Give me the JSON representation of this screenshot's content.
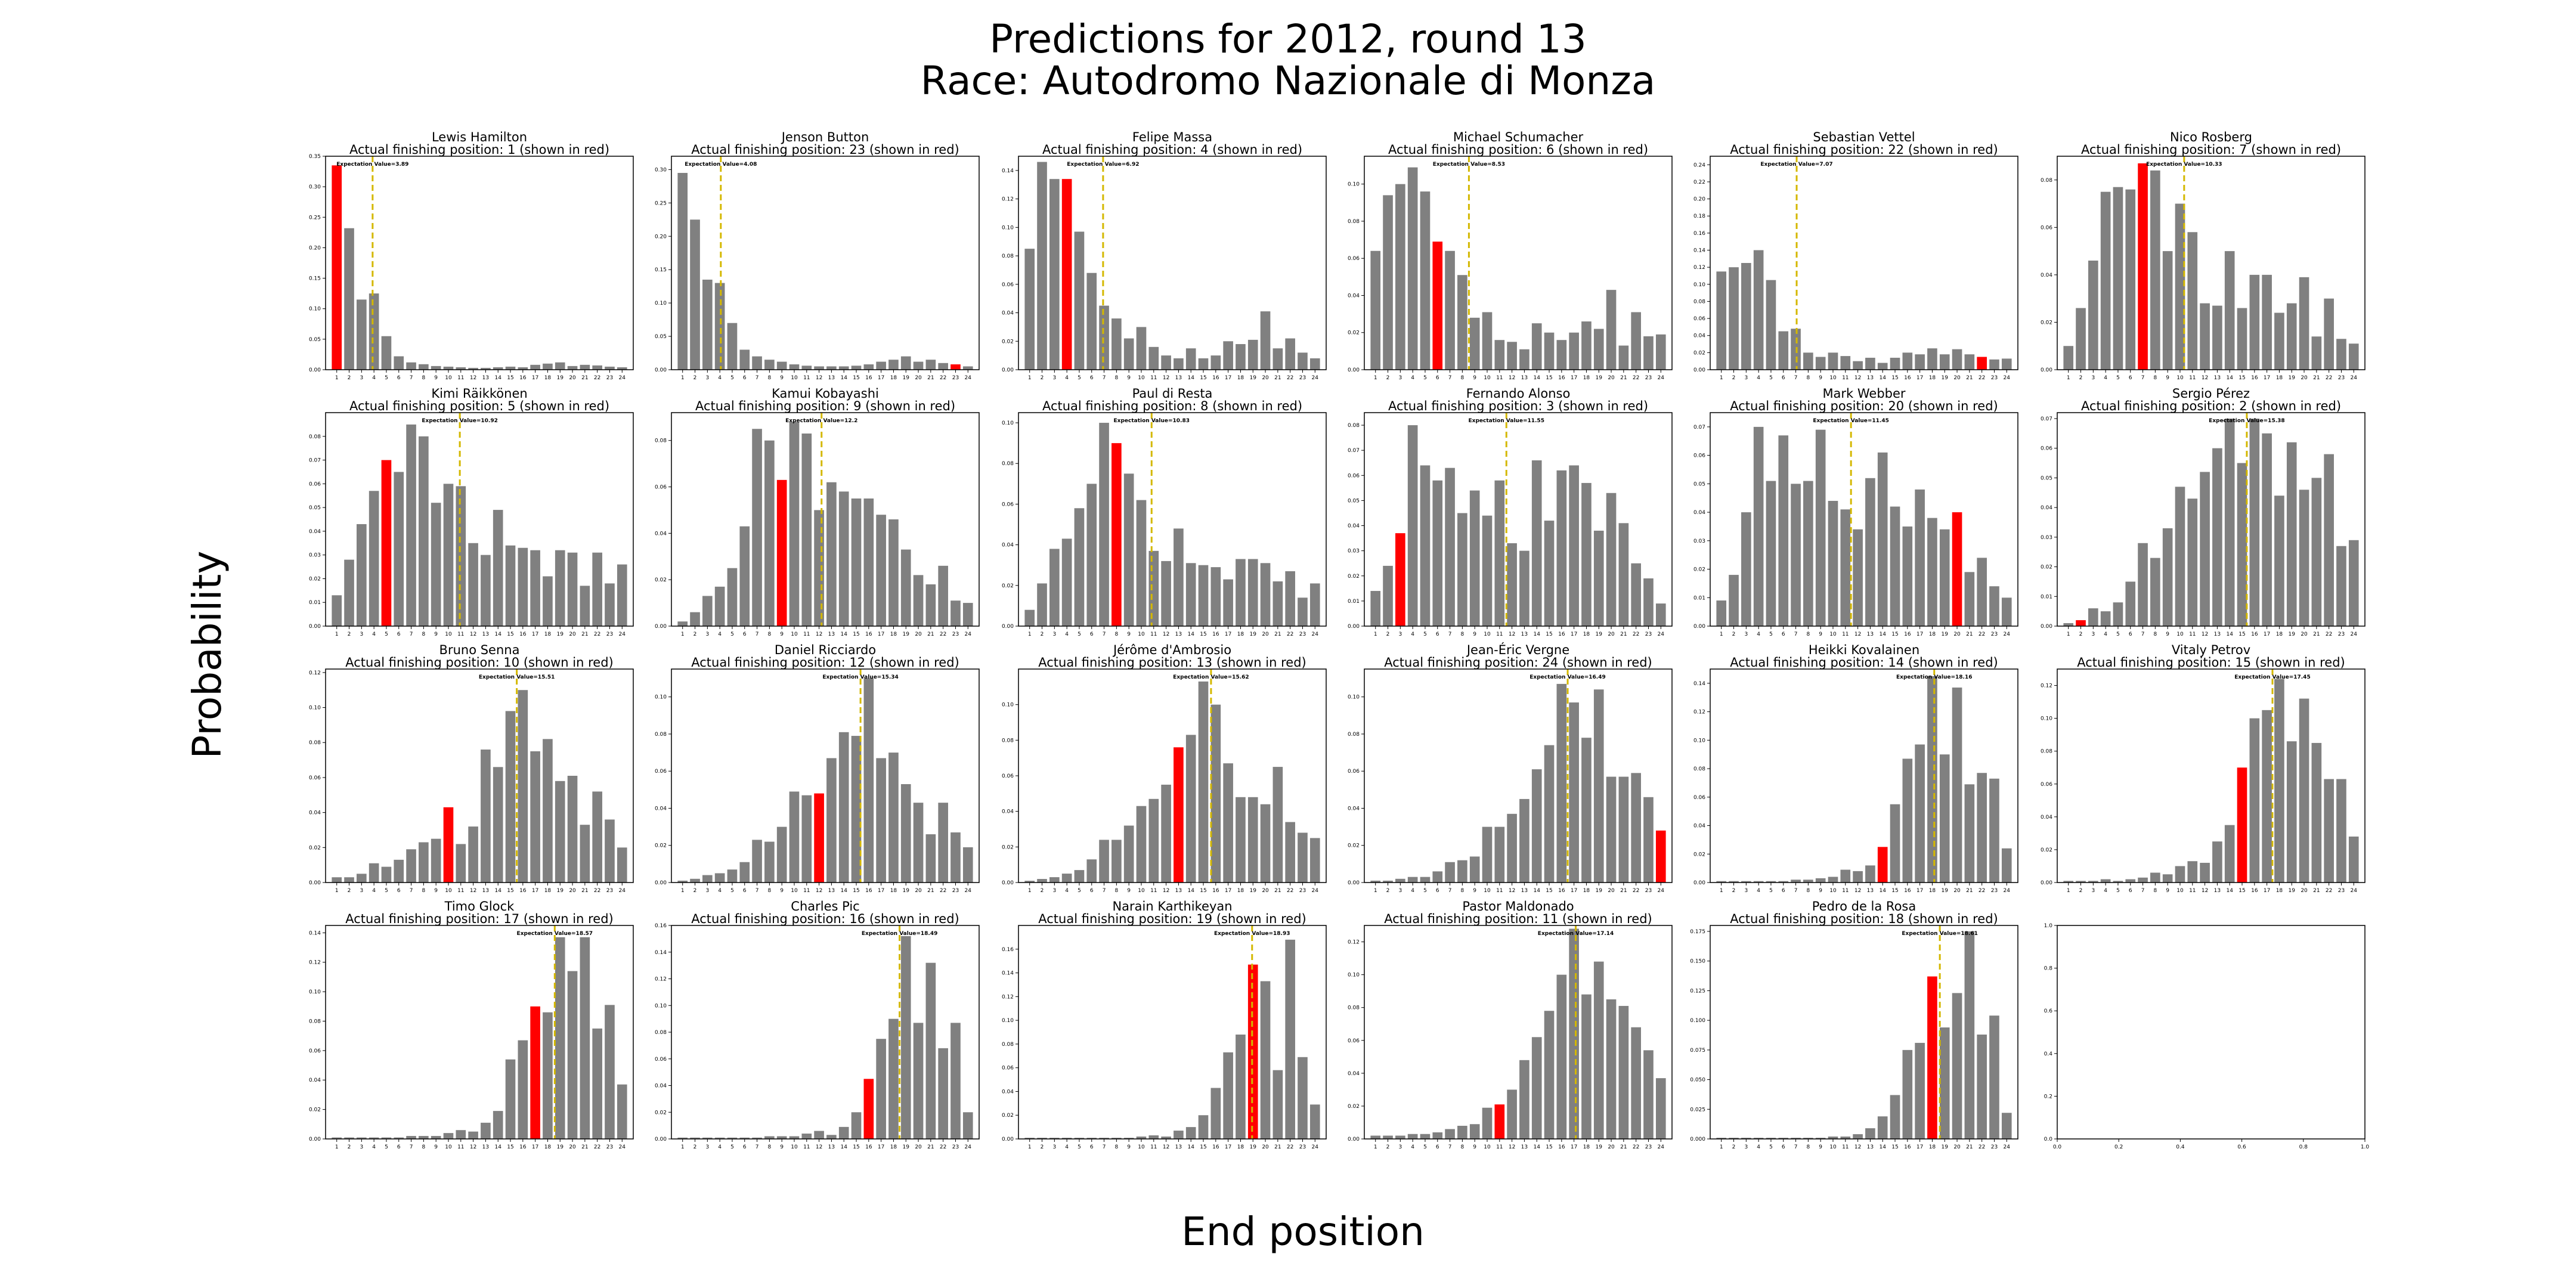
{
  "figure": {
    "title_line1": "Predictions for 2012, round 13",
    "title_line2": "Race: Autodromo Nazionale di Monza",
    "ylabel": "Probability",
    "xlabel": "End position",
    "colors": {
      "bar": "#808080",
      "actual": "#ff0000",
      "expectation_line": "#d4b800",
      "axes": "#000000"
    }
  },
  "chart_data": [
    {
      "type": "bar",
      "title": "Lewis Hamilton",
      "subtitle": "Actual finishing position: 1 (shown in red)",
      "actual": 1,
      "expectation": 3.89,
      "expectation_label": "Expectation Value=3.89",
      "ylim": [
        0,
        0.35
      ],
      "yticks": [
        0.0,
        0.05,
        0.1,
        0.15,
        0.2,
        0.25,
        0.3,
        0.35
      ],
      "values": [
        0.335,
        0.232,
        0.115,
        0.125,
        0.055,
        0.022,
        0.012,
        0.009,
        0.006,
        0.005,
        0.004,
        0.003,
        0.003,
        0.004,
        0.005,
        0.004,
        0.008,
        0.01,
        0.012,
        0.006,
        0.008,
        0.007,
        0.005,
        0.004
      ]
    },
    {
      "type": "bar",
      "title": "Jenson Button",
      "subtitle": "Actual finishing position: 23 (shown in red)",
      "actual": 23,
      "expectation": 4.08,
      "expectation_label": "Expectation Value=4.08",
      "ylim": [
        0,
        0.32
      ],
      "yticks": [
        0.0,
        0.05,
        0.1,
        0.15,
        0.2,
        0.25,
        0.3
      ],
      "values": [
        0.295,
        0.225,
        0.135,
        0.13,
        0.07,
        0.03,
        0.02,
        0.015,
        0.012,
        0.008,
        0.006,
        0.005,
        0.005,
        0.005,
        0.006,
        0.008,
        0.012,
        0.015,
        0.02,
        0.012,
        0.015,
        0.01,
        0.008,
        0.005
      ]
    },
    {
      "type": "bar",
      "title": "Felipe Massa",
      "subtitle": "Actual finishing position: 4 (shown in red)",
      "actual": 4,
      "expectation": 6.92,
      "expectation_label": "Expectation Value=6.92",
      "ylim": [
        0,
        0.15
      ],
      "yticks": [
        0.0,
        0.02,
        0.04,
        0.06,
        0.08,
        0.1,
        0.12,
        0.14
      ],
      "values": [
        0.085,
        0.146,
        0.134,
        0.134,
        0.097,
        0.068,
        0.045,
        0.036,
        0.022,
        0.03,
        0.016,
        0.01,
        0.008,
        0.015,
        0.008,
        0.01,
        0.02,
        0.018,
        0.021,
        0.041,
        0.015,
        0.022,
        0.012,
        0.008
      ]
    },
    {
      "type": "bar",
      "title": "Michael Schumacher",
      "subtitle": "Actual finishing position: 6 (shown in red)",
      "actual": 6,
      "expectation": 8.53,
      "expectation_label": "Expectation Value=8.53",
      "ylim": [
        0,
        0.115
      ],
      "yticks": [
        0.0,
        0.02,
        0.04,
        0.06,
        0.08,
        0.1
      ],
      "values": [
        0.064,
        0.094,
        0.1,
        0.109,
        0.096,
        0.069,
        0.064,
        0.051,
        0.028,
        0.031,
        0.016,
        0.015,
        0.011,
        0.025,
        0.02,
        0.016,
        0.02,
        0.026,
        0.022,
        0.043,
        0.013,
        0.031,
        0.018,
        0.019
      ]
    },
    {
      "type": "bar",
      "title": "Sebastian Vettel",
      "subtitle": "Actual finishing position: 22 (shown in red)",
      "actual": 22,
      "expectation": 7.07,
      "expectation_label": "Expectation Value=7.07",
      "ylim": [
        0,
        0.25
      ],
      "yticks": [
        0.0,
        0.02,
        0.04,
        0.06,
        0.08,
        0.1,
        0.12,
        0.14,
        0.16,
        0.18,
        0.2,
        0.22,
        0.24
      ],
      "values": [
        0.115,
        0.12,
        0.125,
        0.14,
        0.105,
        0.045,
        0.048,
        0.02,
        0.015,
        0.02,
        0.016,
        0.01,
        0.014,
        0.008,
        0.014,
        0.02,
        0.018,
        0.025,
        0.018,
        0.024,
        0.018,
        0.015,
        0.012,
        0.013
      ]
    },
    {
      "type": "bar",
      "title": "Nico Rosberg",
      "subtitle": "Actual finishing position: 7 (shown in red)",
      "actual": 7,
      "expectation": 10.33,
      "expectation_label": "Expectation Value=10.33",
      "ylim": [
        0,
        0.09
      ],
      "yticks": [
        0.0,
        0.02,
        0.04,
        0.06,
        0.08
      ],
      "values": [
        0.01,
        0.026,
        0.046,
        0.075,
        0.077,
        0.076,
        0.087,
        0.084,
        0.05,
        0.07,
        0.058,
        0.028,
        0.027,
        0.05,
        0.026,
        0.04,
        0.04,
        0.024,
        0.028,
        0.039,
        0.014,
        0.03,
        0.013,
        0.011
      ]
    },
    {
      "type": "bar",
      "title": "Kimi Räikkönen",
      "subtitle": "Actual finishing position: 5 (shown in red)",
      "actual": 5,
      "expectation": 10.92,
      "expectation_label": "Expectation Value=10.92",
      "ylim": [
        0,
        0.09
      ],
      "yticks": [
        0.0,
        0.01,
        0.02,
        0.03,
        0.04,
        0.05,
        0.06,
        0.07,
        0.08
      ],
      "values": [
        0.013,
        0.028,
        0.043,
        0.057,
        0.07,
        0.065,
        0.085,
        0.08,
        0.052,
        0.06,
        0.059,
        0.035,
        0.03,
        0.049,
        0.034,
        0.033,
        0.032,
        0.021,
        0.032,
        0.031,
        0.017,
        0.031,
        0.018,
        0.026
      ]
    },
    {
      "type": "bar",
      "title": "Kamui Kobayashi",
      "subtitle": "Actual finishing position: 9 (shown in red)",
      "actual": 9,
      "expectation": 12.2,
      "expectation_label": "Expectation Value=12.2",
      "ylim": [
        0,
        0.092
      ],
      "yticks": [
        0.0,
        0.02,
        0.04,
        0.06,
        0.08
      ],
      "values": [
        0.002,
        0.006,
        0.013,
        0.017,
        0.025,
        0.043,
        0.085,
        0.08,
        0.063,
        0.088,
        0.083,
        0.05,
        0.062,
        0.058,
        0.055,
        0.055,
        0.048,
        0.046,
        0.033,
        0.022,
        0.018,
        0.026,
        0.011,
        0.01
      ]
    },
    {
      "type": "bar",
      "title": "Paul di Resta",
      "subtitle": "Actual finishing position: 8 (shown in red)",
      "actual": 8,
      "expectation": 10.83,
      "expectation_label": "Expectation Value=10.83",
      "ylim": [
        0,
        0.105
      ],
      "yticks": [
        0.0,
        0.02,
        0.04,
        0.06,
        0.08,
        0.1
      ],
      "values": [
        0.008,
        0.021,
        0.038,
        0.043,
        0.058,
        0.07,
        0.1,
        0.09,
        0.075,
        0.062,
        0.037,
        0.032,
        0.048,
        0.031,
        0.03,
        0.029,
        0.023,
        0.033,
        0.033,
        0.031,
        0.022,
        0.027,
        0.014,
        0.021
      ]
    },
    {
      "type": "bar",
      "title": "Fernando Alonso",
      "subtitle": "Actual finishing position: 3 (shown in red)",
      "actual": 3,
      "expectation": 11.55,
      "expectation_label": "Expectation Value=11.55",
      "ylim": [
        0,
        0.085
      ],
      "yticks": [
        0.0,
        0.01,
        0.02,
        0.03,
        0.04,
        0.05,
        0.06,
        0.07,
        0.08
      ],
      "values": [
        0.014,
        0.024,
        0.037,
        0.08,
        0.064,
        0.058,
        0.063,
        0.045,
        0.054,
        0.044,
        0.058,
        0.033,
        0.03,
        0.066,
        0.042,
        0.062,
        0.064,
        0.057,
        0.038,
        0.053,
        0.041,
        0.025,
        0.019,
        0.009
      ]
    },
    {
      "type": "bar",
      "title": "Mark Webber",
      "subtitle": "Actual finishing position: 20 (shown in red)",
      "actual": 20,
      "expectation": 11.45,
      "expectation_label": "Expectation Value=11.45",
      "ylim": [
        0,
        0.075
      ],
      "yticks": [
        0.0,
        0.01,
        0.02,
        0.03,
        0.04,
        0.05,
        0.06,
        0.07
      ],
      "values": [
        0.009,
        0.018,
        0.04,
        0.07,
        0.051,
        0.067,
        0.05,
        0.051,
        0.069,
        0.044,
        0.041,
        0.034,
        0.052,
        0.061,
        0.042,
        0.035,
        0.048,
        0.038,
        0.034,
        0.04,
        0.019,
        0.024,
        0.014,
        0.01
      ]
    },
    {
      "type": "bar",
      "title": "Sergio Pérez",
      "subtitle": "Actual finishing position: 2 (shown in red)",
      "actual": 2,
      "expectation": 15.38,
      "expectation_label": "Expectation Value=15.38",
      "ylim": [
        0,
        0.072
      ],
      "yticks": [
        0.0,
        0.01,
        0.02,
        0.03,
        0.04,
        0.05,
        0.06,
        0.07
      ],
      "values": [
        0.001,
        0.002,
        0.006,
        0.005,
        0.008,
        0.015,
        0.028,
        0.023,
        0.033,
        0.047,
        0.043,
        0.052,
        0.06,
        0.07,
        0.055,
        0.07,
        0.065,
        0.044,
        0.062,
        0.046,
        0.05,
        0.058,
        0.027,
        0.029
      ]
    },
    {
      "type": "bar",
      "title": "Bruno Senna",
      "subtitle": "Actual finishing position: 10 (shown in red)",
      "actual": 10,
      "expectation": 15.51,
      "expectation_label": "Expectation Value=15.51",
      "ylim": [
        0,
        0.122
      ],
      "yticks": [
        0.0,
        0.02,
        0.04,
        0.06,
        0.08,
        0.1,
        0.12
      ],
      "values": [
        0.003,
        0.003,
        0.005,
        0.011,
        0.009,
        0.013,
        0.019,
        0.023,
        0.025,
        0.043,
        0.022,
        0.032,
        0.076,
        0.066,
        0.098,
        0.11,
        0.075,
        0.082,
        0.058,
        0.061,
        0.033,
        0.052,
        0.036,
        0.02
      ]
    },
    {
      "type": "bar",
      "title": "Daniel Ricciardo",
      "subtitle": "Actual finishing position: 12 (shown in red)",
      "actual": 12,
      "expectation": 15.34,
      "expectation_label": "Expectation Value=15.34",
      "ylim": [
        0,
        0.115
      ],
      "yticks": [
        0.0,
        0.02,
        0.04,
        0.06,
        0.08,
        0.1
      ],
      "values": [
        0.001,
        0.002,
        0.004,
        0.005,
        0.007,
        0.011,
        0.023,
        0.022,
        0.03,
        0.049,
        0.047,
        0.048,
        0.067,
        0.081,
        0.079,
        0.11,
        0.067,
        0.07,
        0.053,
        0.043,
        0.026,
        0.043,
        0.027,
        0.019
      ]
    },
    {
      "type": "bar",
      "title": "Jérôme d'Ambrosio",
      "subtitle": "Actual finishing position: 13 (shown in red)",
      "actual": 13,
      "expectation": 15.62,
      "expectation_label": "Expectation Value=15.62",
      "ylim": [
        0,
        0.12
      ],
      "yticks": [
        0.0,
        0.02,
        0.04,
        0.06,
        0.08,
        0.1
      ],
      "values": [
        0.001,
        0.002,
        0.003,
        0.005,
        0.007,
        0.013,
        0.024,
        0.024,
        0.032,
        0.043,
        0.047,
        0.055,
        0.076,
        0.083,
        0.113,
        0.1,
        0.067,
        0.048,
        0.048,
        0.044,
        0.065,
        0.034,
        0.028,
        0.025
      ]
    },
    {
      "type": "bar",
      "title": "Jean-Éric Vergne",
      "subtitle": "Actual finishing position: 24 (shown in red)",
      "actual": 24,
      "expectation": 16.49,
      "expectation_label": "Expectation Value=16.49",
      "ylim": [
        0,
        0.115
      ],
      "yticks": [
        0.0,
        0.02,
        0.04,
        0.06,
        0.08,
        0.1
      ],
      "values": [
        0.001,
        0.001,
        0.002,
        0.003,
        0.003,
        0.006,
        0.011,
        0.012,
        0.014,
        0.03,
        0.03,
        0.037,
        0.045,
        0.061,
        0.074,
        0.107,
        0.097,
        0.078,
        0.104,
        0.057,
        0.057,
        0.059,
        0.046,
        0.028
      ]
    },
    {
      "type": "bar",
      "title": "Heikki Kovalainen",
      "subtitle": "Actual finishing position: 14 (shown in red)",
      "actual": 14,
      "expectation": 18.16,
      "expectation_label": "Expectation Value=18.16",
      "ylim": [
        0,
        0.15
      ],
      "yticks": [
        0.0,
        0.02,
        0.04,
        0.06,
        0.08,
        0.1,
        0.12,
        0.14
      ],
      "values": [
        0.001,
        0.001,
        0.001,
        0.001,
        0.001,
        0.001,
        0.002,
        0.002,
        0.003,
        0.004,
        0.009,
        0.008,
        0.012,
        0.025,
        0.055,
        0.087,
        0.097,
        0.145,
        0.09,
        0.137,
        0.069,
        0.077,
        0.073,
        0.024
      ]
    },
    {
      "type": "bar",
      "title": "Vitaly Petrov",
      "subtitle": "Actual finishing position: 15 (shown in red)",
      "actual": 15,
      "expectation": 17.45,
      "expectation_label": "Expectation Value=17.45",
      "ylim": [
        0,
        0.13
      ],
      "yticks": [
        0.0,
        0.02,
        0.04,
        0.06,
        0.08,
        0.1,
        0.12
      ],
      "values": [
        0.001,
        0.001,
        0.001,
        0.002,
        0.001,
        0.002,
        0.003,
        0.006,
        0.005,
        0.01,
        0.013,
        0.012,
        0.025,
        0.035,
        0.07,
        0.1,
        0.105,
        0.124,
        0.086,
        0.112,
        0.085,
        0.063,
        0.063,
        0.028
      ]
    },
    {
      "type": "bar",
      "title": "Timo Glock",
      "subtitle": "Actual finishing position: 17 (shown in red)",
      "actual": 17,
      "expectation": 18.57,
      "expectation_label": "Expectation Value=18.57",
      "ylim": [
        0,
        0.145
      ],
      "yticks": [
        0.0,
        0.02,
        0.04,
        0.06,
        0.08,
        0.1,
        0.12,
        0.14
      ],
      "values": [
        0.001,
        0.001,
        0.001,
        0.001,
        0.001,
        0.001,
        0.002,
        0.002,
        0.002,
        0.004,
        0.006,
        0.005,
        0.011,
        0.019,
        0.054,
        0.067,
        0.09,
        0.086,
        0.137,
        0.114,
        0.137,
        0.075,
        0.091,
        0.037
      ]
    },
    {
      "type": "bar",
      "title": "Charles Pic",
      "subtitle": "Actual finishing position: 16 (shown in red)",
      "actual": 16,
      "expectation": 18.49,
      "expectation_label": "Expectation Value=18.49",
      "ylim": [
        0,
        0.16
      ],
      "yticks": [
        0.0,
        0.02,
        0.04,
        0.06,
        0.08,
        0.1,
        0.12,
        0.14,
        0.16
      ],
      "values": [
        0.001,
        0.001,
        0.001,
        0.001,
        0.001,
        0.001,
        0.001,
        0.002,
        0.002,
        0.002,
        0.004,
        0.006,
        0.003,
        0.009,
        0.02,
        0.045,
        0.075,
        0.09,
        0.152,
        0.087,
        0.132,
        0.068,
        0.087,
        0.02
      ]
    },
    {
      "type": "bar",
      "title": "Narain Karthikeyan",
      "subtitle": "Actual finishing position: 19 (shown in red)",
      "actual": 19,
      "expectation": 18.93,
      "expectation_label": "Expectation Value=18.93",
      "ylim": [
        0,
        0.18
      ],
      "yticks": [
        0.0,
        0.02,
        0.04,
        0.06,
        0.08,
        0.1,
        0.12,
        0.14,
        0.16
      ],
      "values": [
        0.001,
        0.001,
        0.001,
        0.001,
        0.001,
        0.001,
        0.001,
        0.001,
        0.001,
        0.002,
        0.003,
        0.002,
        0.007,
        0.01,
        0.02,
        0.043,
        0.073,
        0.088,
        0.147,
        0.133,
        0.058,
        0.168,
        0.069,
        0.029
      ]
    },
    {
      "type": "bar",
      "title": "Pastor Maldonado",
      "subtitle": "Actual finishing position: 11 (shown in red)",
      "actual": 11,
      "expectation": 17.14,
      "expectation_label": "Expectation Value=17.14",
      "ylim": [
        0,
        0.13
      ],
      "yticks": [
        0.0,
        0.02,
        0.04,
        0.06,
        0.08,
        0.1,
        0.12
      ],
      "values": [
        0.002,
        0.002,
        0.002,
        0.003,
        0.003,
        0.004,
        0.006,
        0.008,
        0.009,
        0.019,
        0.021,
        0.03,
        0.048,
        0.062,
        0.078,
        0.1,
        0.128,
        0.088,
        0.108,
        0.085,
        0.081,
        0.068,
        0.054,
        0.037
      ]
    },
    {
      "type": "bar",
      "title": "Pedro de la Rosa",
      "subtitle": "Actual finishing position: 18 (shown in red)",
      "actual": 18,
      "expectation": 18.61,
      "expectation_label": "Expectation Value=18.61",
      "ylim": [
        0,
        0.18
      ],
      "yticks": [
        0.0,
        0.025,
        0.05,
        0.075,
        0.1,
        0.125,
        0.15,
        0.175
      ],
      "values": [
        0.001,
        0.001,
        0.001,
        0.001,
        0.001,
        0.001,
        0.001,
        0.001,
        0.001,
        0.002,
        0.002,
        0.004,
        0.009,
        0.019,
        0.037,
        0.075,
        0.081,
        0.137,
        0.094,
        0.123,
        0.175,
        0.088,
        0.104,
        0.022
      ]
    },
    {
      "type": "empty",
      "title": "",
      "subtitle": "",
      "xlim": [
        0.0,
        1.0
      ],
      "ylim": [
        0.0,
        1.0
      ],
      "xticks": [
        "0.0",
        "0.2",
        "0.4",
        "0.6",
        "0.8",
        "1.0"
      ],
      "yticks": [
        "0.0",
        "0.2",
        "0.4",
        "0.6",
        "0.8",
        "1.0"
      ]
    }
  ]
}
